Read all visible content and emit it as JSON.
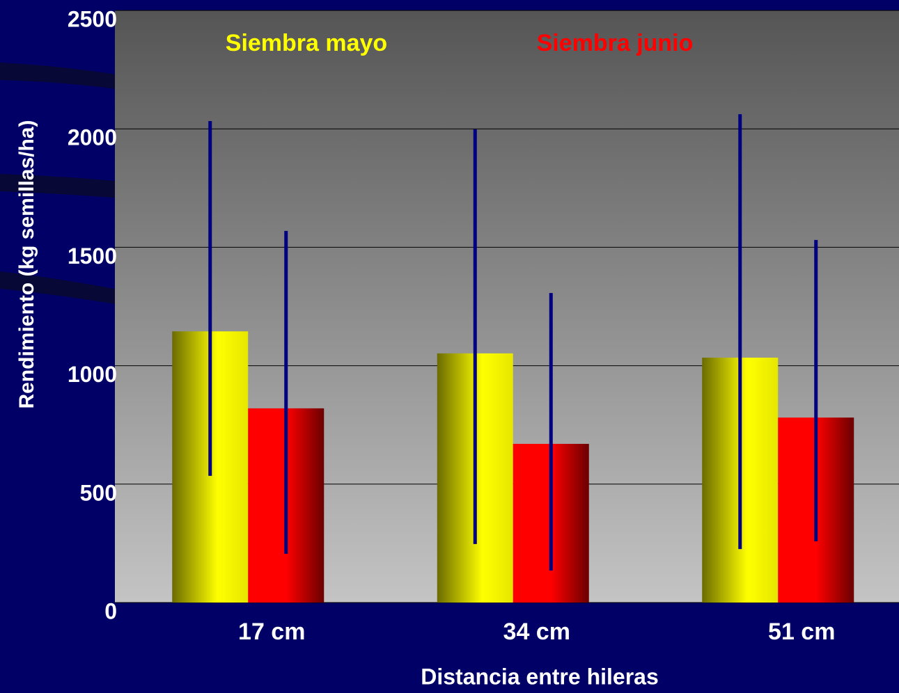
{
  "chart_data": {
    "type": "bar",
    "y_label": "Rendimiento (kg semillas/ha)",
    "x_label": "Distancia entre hileras",
    "categories": [
      "17 cm",
      "34 cm",
      "51 cm"
    ],
    "series": [
      {
        "name": "Siembra mayo",
        "color": "#ffff00",
        "values": [
          1145,
          1052,
          1034
        ],
        "error_range": [
          [
            535,
            2033
          ],
          [
            247,
            1998
          ],
          [
            226,
            2062
          ]
        ]
      },
      {
        "name": "Siembra junio",
        "color": "#ff0000",
        "values": [
          820,
          670,
          781
        ],
        "error_range": [
          [
            206,
            1569
          ],
          [
            135,
            1307
          ],
          [
            259,
            1531
          ]
        ]
      }
    ],
    "error_color": "#000080",
    "ylim": [
      0,
      2500
    ],
    "yticks": [
      0,
      500,
      1000,
      1500,
      2000,
      2500
    ],
    "grid": true,
    "legend": "top"
  }
}
